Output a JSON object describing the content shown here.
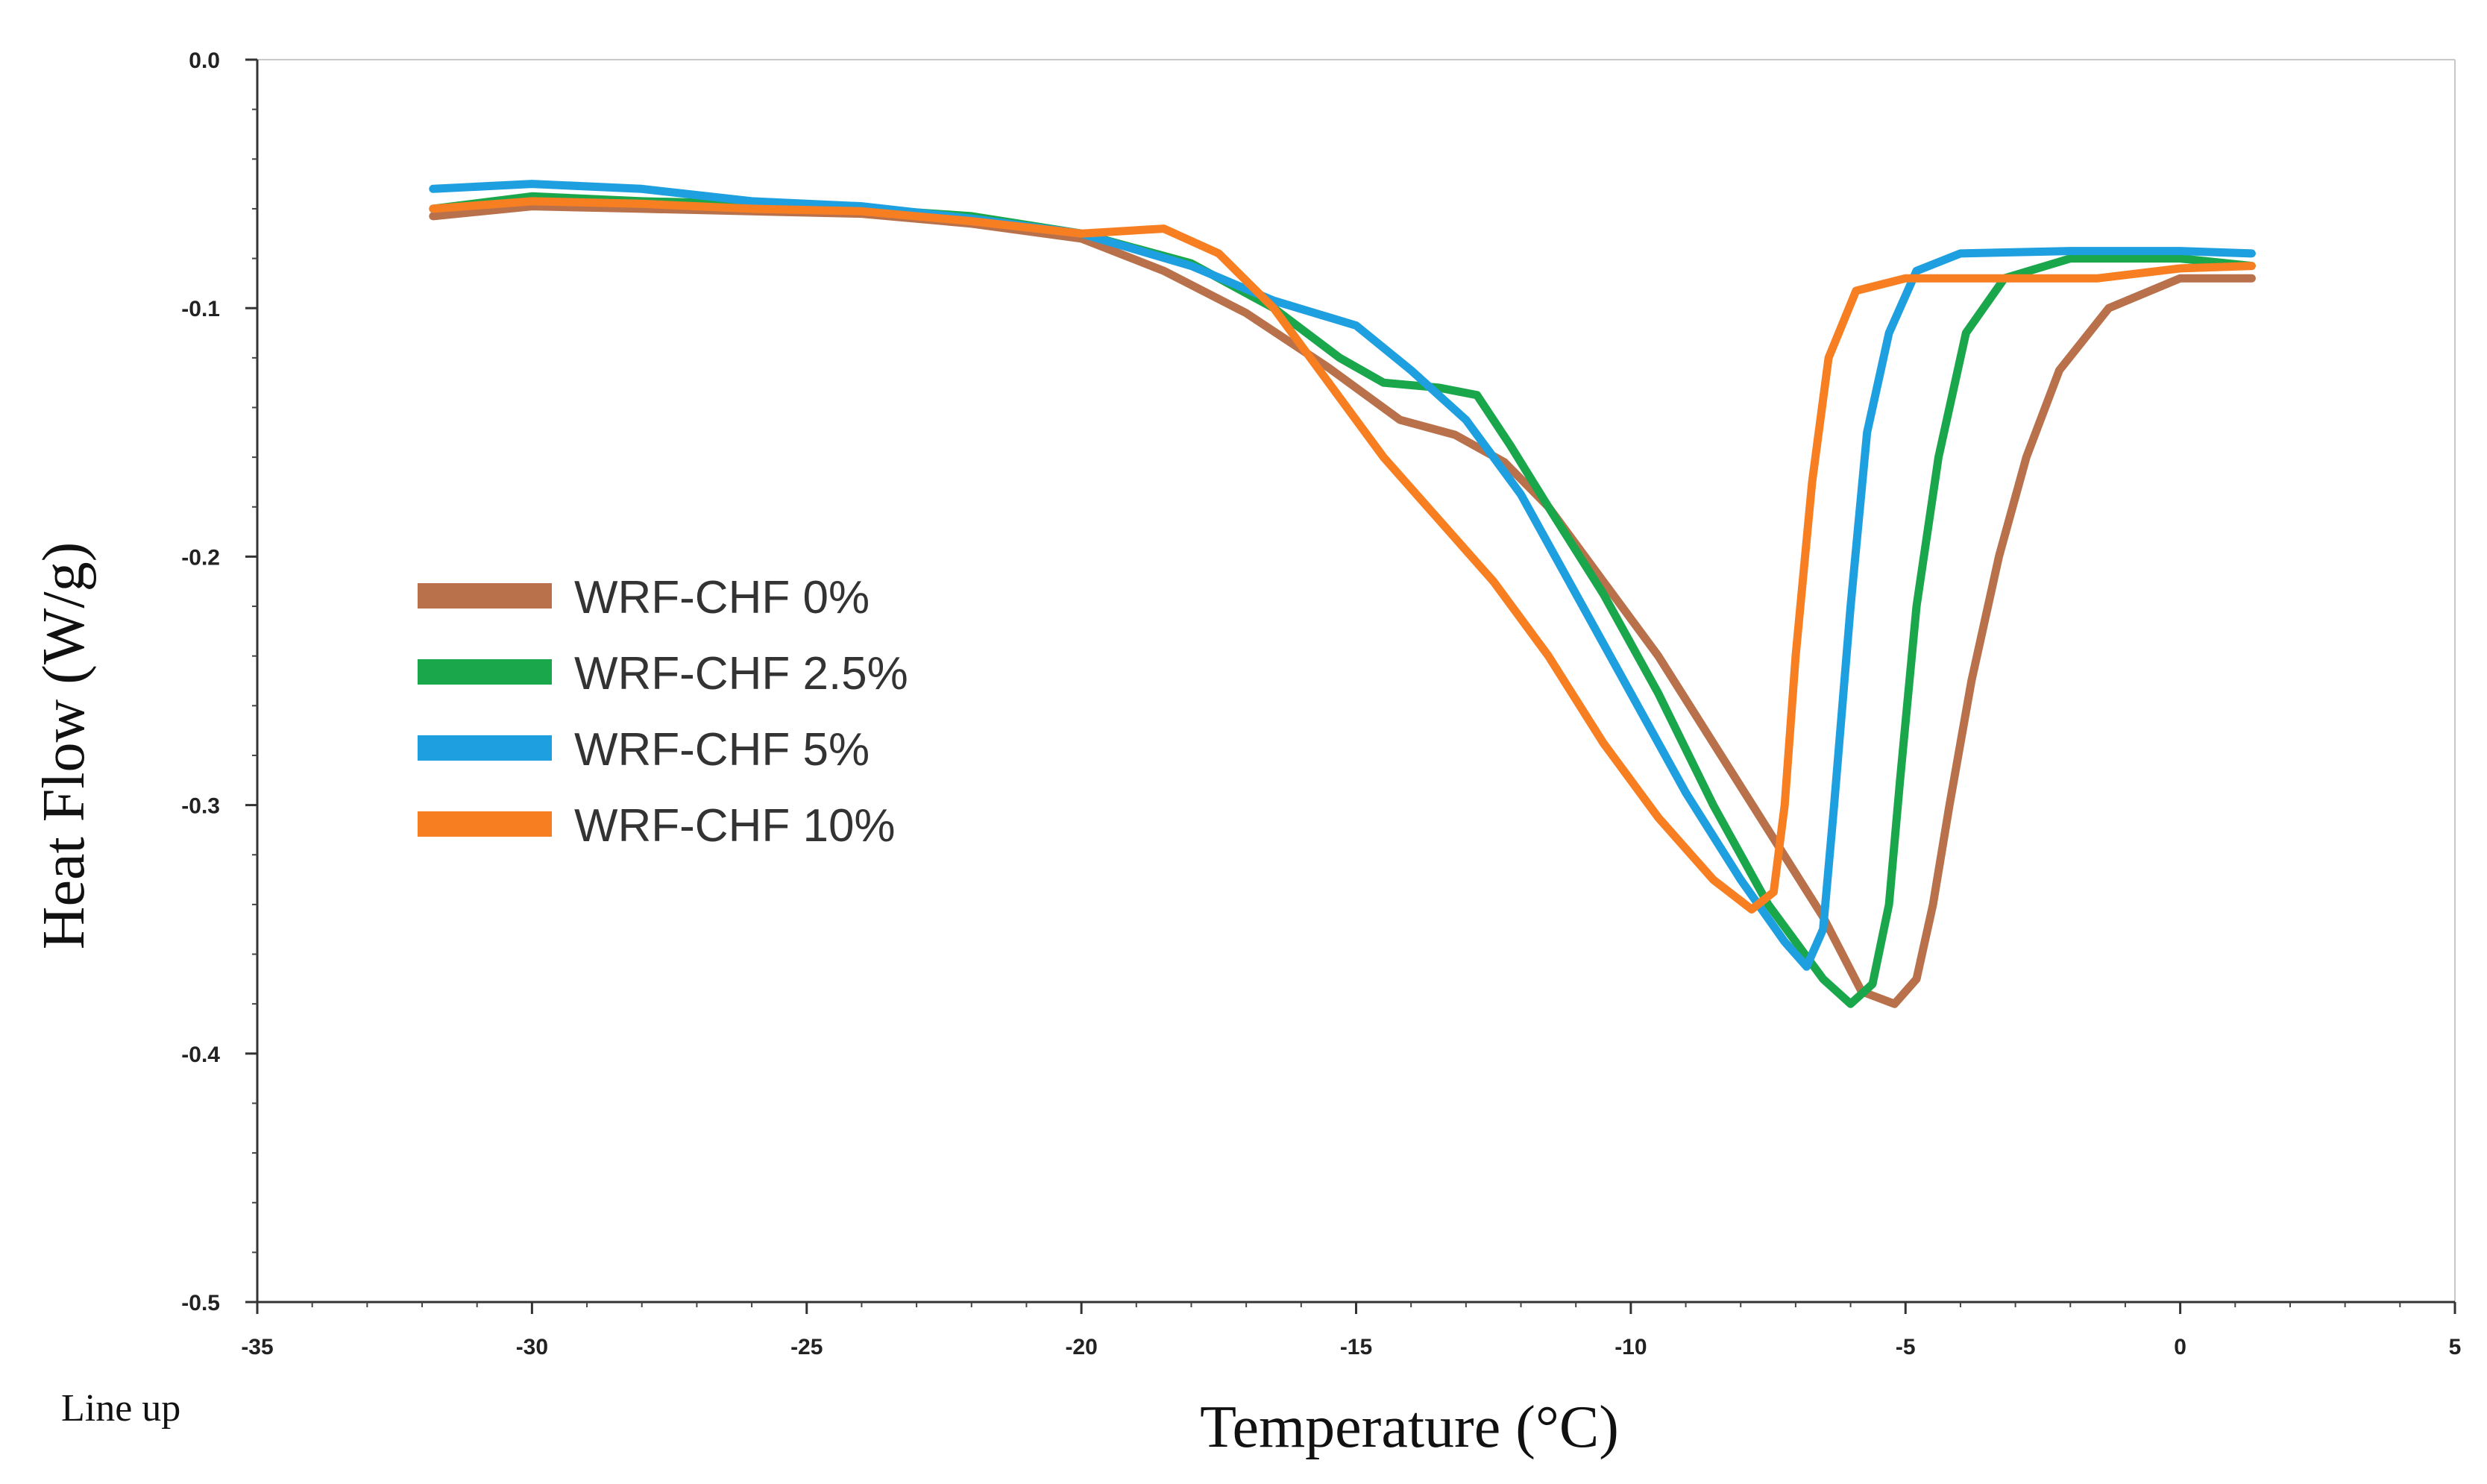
{
  "footnote": "Line up",
  "chart_data": {
    "type": "line",
    "xlabel": "Temperature (°C)",
    "ylabel": "Heat Flow (W/g)",
    "xlim": [
      -35,
      5
    ],
    "ylim": [
      -0.5,
      0.0
    ],
    "x_ticks": [
      -35,
      -30,
      -25,
      -20,
      -15,
      -10,
      -5,
      0,
      5
    ],
    "x_tick_labels": [
      "-35",
      "-30",
      "-25",
      "-20",
      "-15",
      "-10",
      "-5",
      "0",
      "5"
    ],
    "y_ticks": [
      0.0,
      -0.1,
      -0.2,
      -0.3,
      -0.4,
      -0.5
    ],
    "y_tick_labels": [
      "0.0",
      "-0.1",
      "-0.2",
      "-0.3",
      "-0.4",
      "-0.5"
    ],
    "legend_position": "left-center",
    "series": [
      {
        "name": "WRF-CHF 0%",
        "color": "#b8714a",
        "points": [
          [
            -31.8,
            -0.063
          ],
          [
            -30,
            -0.059
          ],
          [
            -28,
            -0.06
          ],
          [
            -26,
            -0.061
          ],
          [
            -24,
            -0.062
          ],
          [
            -22,
            -0.066
          ],
          [
            -20,
            -0.072
          ],
          [
            -18.5,
            -0.085
          ],
          [
            -17,
            -0.102
          ],
          [
            -15.5,
            -0.124
          ],
          [
            -14.2,
            -0.145
          ],
          [
            -13.2,
            -0.151
          ],
          [
            -12.3,
            -0.162
          ],
          [
            -11.5,
            -0.18
          ],
          [
            -10.5,
            -0.21
          ],
          [
            -9.5,
            -0.24
          ],
          [
            -8.5,
            -0.275
          ],
          [
            -7.5,
            -0.31
          ],
          [
            -6.5,
            -0.345
          ],
          [
            -5.8,
            -0.375
          ],
          [
            -5.2,
            -0.38
          ],
          [
            -4.8,
            -0.37
          ],
          [
            -4.5,
            -0.34
          ],
          [
            -4.2,
            -0.3
          ],
          [
            -3.8,
            -0.25
          ],
          [
            -3.3,
            -0.2
          ],
          [
            -2.8,
            -0.16
          ],
          [
            -2.2,
            -0.125
          ],
          [
            -1.3,
            -0.1
          ],
          [
            0,
            -0.088
          ],
          [
            1.3,
            -0.088
          ]
        ]
      },
      {
        "name": "WRF-CHF 2.5%",
        "color": "#1aa64b",
        "points": [
          [
            -31.8,
            -0.06
          ],
          [
            -30,
            -0.055
          ],
          [
            -28,
            -0.057
          ],
          [
            -26,
            -0.058
          ],
          [
            -24,
            -0.06
          ],
          [
            -22,
            -0.063
          ],
          [
            -20,
            -0.07
          ],
          [
            -18,
            -0.082
          ],
          [
            -16.5,
            -0.1
          ],
          [
            -15.3,
            -0.12
          ],
          [
            -14.5,
            -0.13
          ],
          [
            -13.5,
            -0.132
          ],
          [
            -12.8,
            -0.135
          ],
          [
            -12.2,
            -0.155
          ],
          [
            -11.5,
            -0.18
          ],
          [
            -10.5,
            -0.215
          ],
          [
            -9.5,
            -0.255
          ],
          [
            -8.5,
            -0.3
          ],
          [
            -7.5,
            -0.34
          ],
          [
            -6.5,
            -0.37
          ],
          [
            -6.0,
            -0.38
          ],
          [
            -5.6,
            -0.372
          ],
          [
            -5.3,
            -0.34
          ],
          [
            -5.1,
            -0.29
          ],
          [
            -4.8,
            -0.22
          ],
          [
            -4.4,
            -0.16
          ],
          [
            -3.9,
            -0.11
          ],
          [
            -3.2,
            -0.088
          ],
          [
            -2,
            -0.08
          ],
          [
            0,
            -0.08
          ],
          [
            1.3,
            -0.083
          ]
        ]
      },
      {
        "name": "WRF-CHF 5%",
        "color": "#1e9fe0",
        "points": [
          [
            -31.8,
            -0.052
          ],
          [
            -30,
            -0.05
          ],
          [
            -28,
            -0.052
          ],
          [
            -26,
            -0.057
          ],
          [
            -24,
            -0.059
          ],
          [
            -22,
            -0.064
          ],
          [
            -20,
            -0.07
          ],
          [
            -18,
            -0.083
          ],
          [
            -16.5,
            -0.097
          ],
          [
            -15,
            -0.107
          ],
          [
            -14,
            -0.125
          ],
          [
            -13,
            -0.145
          ],
          [
            -12,
            -0.175
          ],
          [
            -11,
            -0.215
          ],
          [
            -10,
            -0.255
          ],
          [
            -9,
            -0.295
          ],
          [
            -8,
            -0.33
          ],
          [
            -7.2,
            -0.355
          ],
          [
            -6.8,
            -0.365
          ],
          [
            -6.5,
            -0.35
          ],
          [
            -6.3,
            -0.3
          ],
          [
            -6.0,
            -0.22
          ],
          [
            -5.7,
            -0.15
          ],
          [
            -5.3,
            -0.11
          ],
          [
            -4.8,
            -0.085
          ],
          [
            -4,
            -0.078
          ],
          [
            -2,
            -0.077
          ],
          [
            0,
            -0.077
          ],
          [
            1.3,
            -0.078
          ]
        ]
      },
      {
        "name": "WRF-CHF 10%",
        "color": "#f77f22",
        "points": [
          [
            -31.8,
            -0.06
          ],
          [
            -30,
            -0.057
          ],
          [
            -28,
            -0.058
          ],
          [
            -26,
            -0.06
          ],
          [
            -24,
            -0.061
          ],
          [
            -22,
            -0.065
          ],
          [
            -20,
            -0.07
          ],
          [
            -18.5,
            -0.068
          ],
          [
            -17.5,
            -0.078
          ],
          [
            -16.5,
            -0.1
          ],
          [
            -15.5,
            -0.13
          ],
          [
            -14.5,
            -0.16
          ],
          [
            -13.5,
            -0.185
          ],
          [
            -12.5,
            -0.21
          ],
          [
            -11.5,
            -0.24
          ],
          [
            -10.5,
            -0.275
          ],
          [
            -9.5,
            -0.305
          ],
          [
            -8.5,
            -0.33
          ],
          [
            -7.8,
            -0.342
          ],
          [
            -7.4,
            -0.335
          ],
          [
            -7.2,
            -0.3
          ],
          [
            -7.0,
            -0.24
          ],
          [
            -6.7,
            -0.17
          ],
          [
            -6.4,
            -0.12
          ],
          [
            -5.9,
            -0.093
          ],
          [
            -5,
            -0.088
          ],
          [
            -3,
            -0.088
          ],
          [
            -1.5,
            -0.088
          ],
          [
            0,
            -0.084
          ],
          [
            1.3,
            -0.083
          ]
        ]
      }
    ]
  }
}
